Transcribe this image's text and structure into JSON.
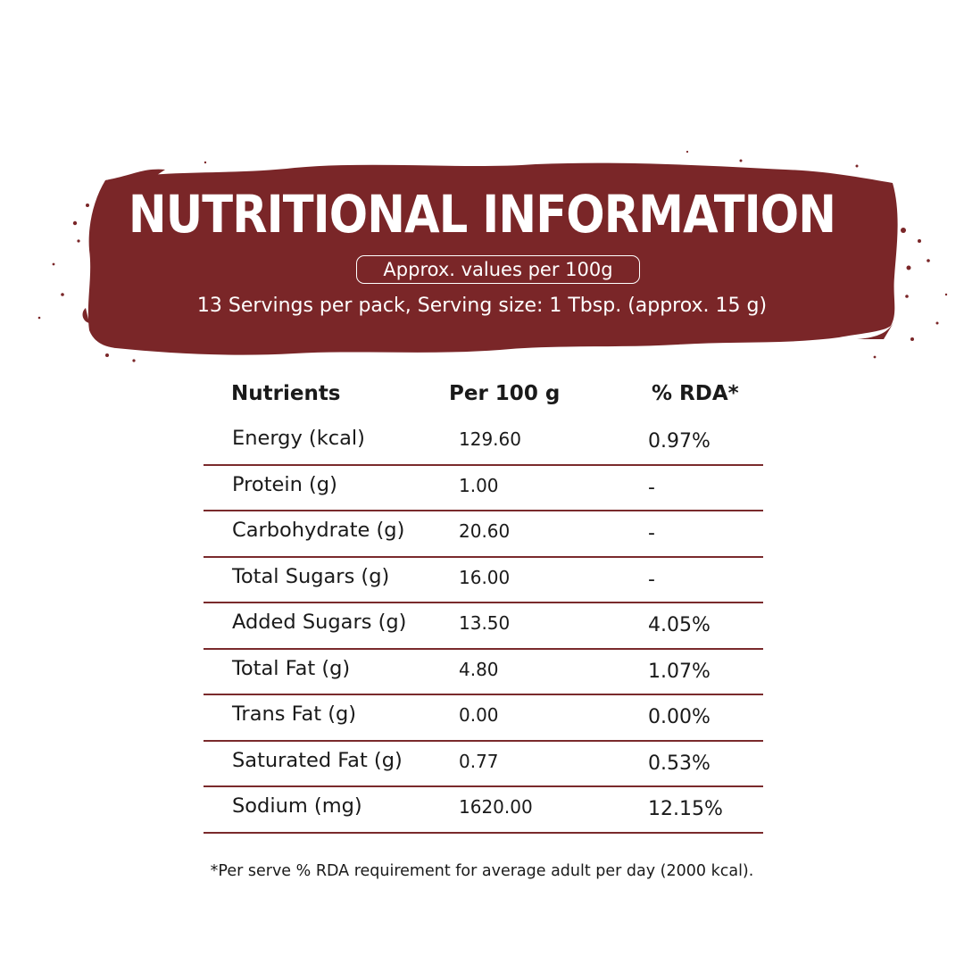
{
  "header": {
    "title": "NUTRITIONAL INFORMATION",
    "approx_label": "Approx. values per 100g",
    "servings_text": "13 Servings per pack, Serving size: 1 Tbsp. (approx. 15 g)"
  },
  "table": {
    "columns": [
      "Nutrients",
      "Per 100 g",
      "% RDA*"
    ],
    "rows": [
      {
        "nutrient": "Energy (kcal)",
        "per_100g": "129.60",
        "rda": "0.97%"
      },
      {
        "nutrient": "Protein (g)",
        "per_100g": "1.00",
        "rda": "-"
      },
      {
        "nutrient": "Carbohydrate (g)",
        "per_100g": "20.60",
        "rda": "-"
      },
      {
        "nutrient": "Total Sugars (g)",
        "per_100g": "16.00",
        "rda": "-"
      },
      {
        "nutrient": "Added Sugars (g)",
        "per_100g": "13.50",
        "rda": "4.05%"
      },
      {
        "nutrient": "Total Fat (g)",
        "per_100g": "4.80",
        "rda": "1.07%"
      },
      {
        "nutrient": "Trans Fat (g)",
        "per_100g": "0.00",
        "rda": "0.00%"
      },
      {
        "nutrient": "Saturated Fat (g)",
        "per_100g": "0.77",
        "rda": "0.53%"
      },
      {
        "nutrient": "Sodium (mg)",
        "per_100g": "1620.00",
        "rda": "12.15%"
      }
    ]
  },
  "footnote": "*Per serve % RDA requirement for average adult per day (2000 kcal).",
  "colors": {
    "banner": "#7a2628",
    "divider": "#7a2a2c",
    "text": "#1a1a1a"
  }
}
